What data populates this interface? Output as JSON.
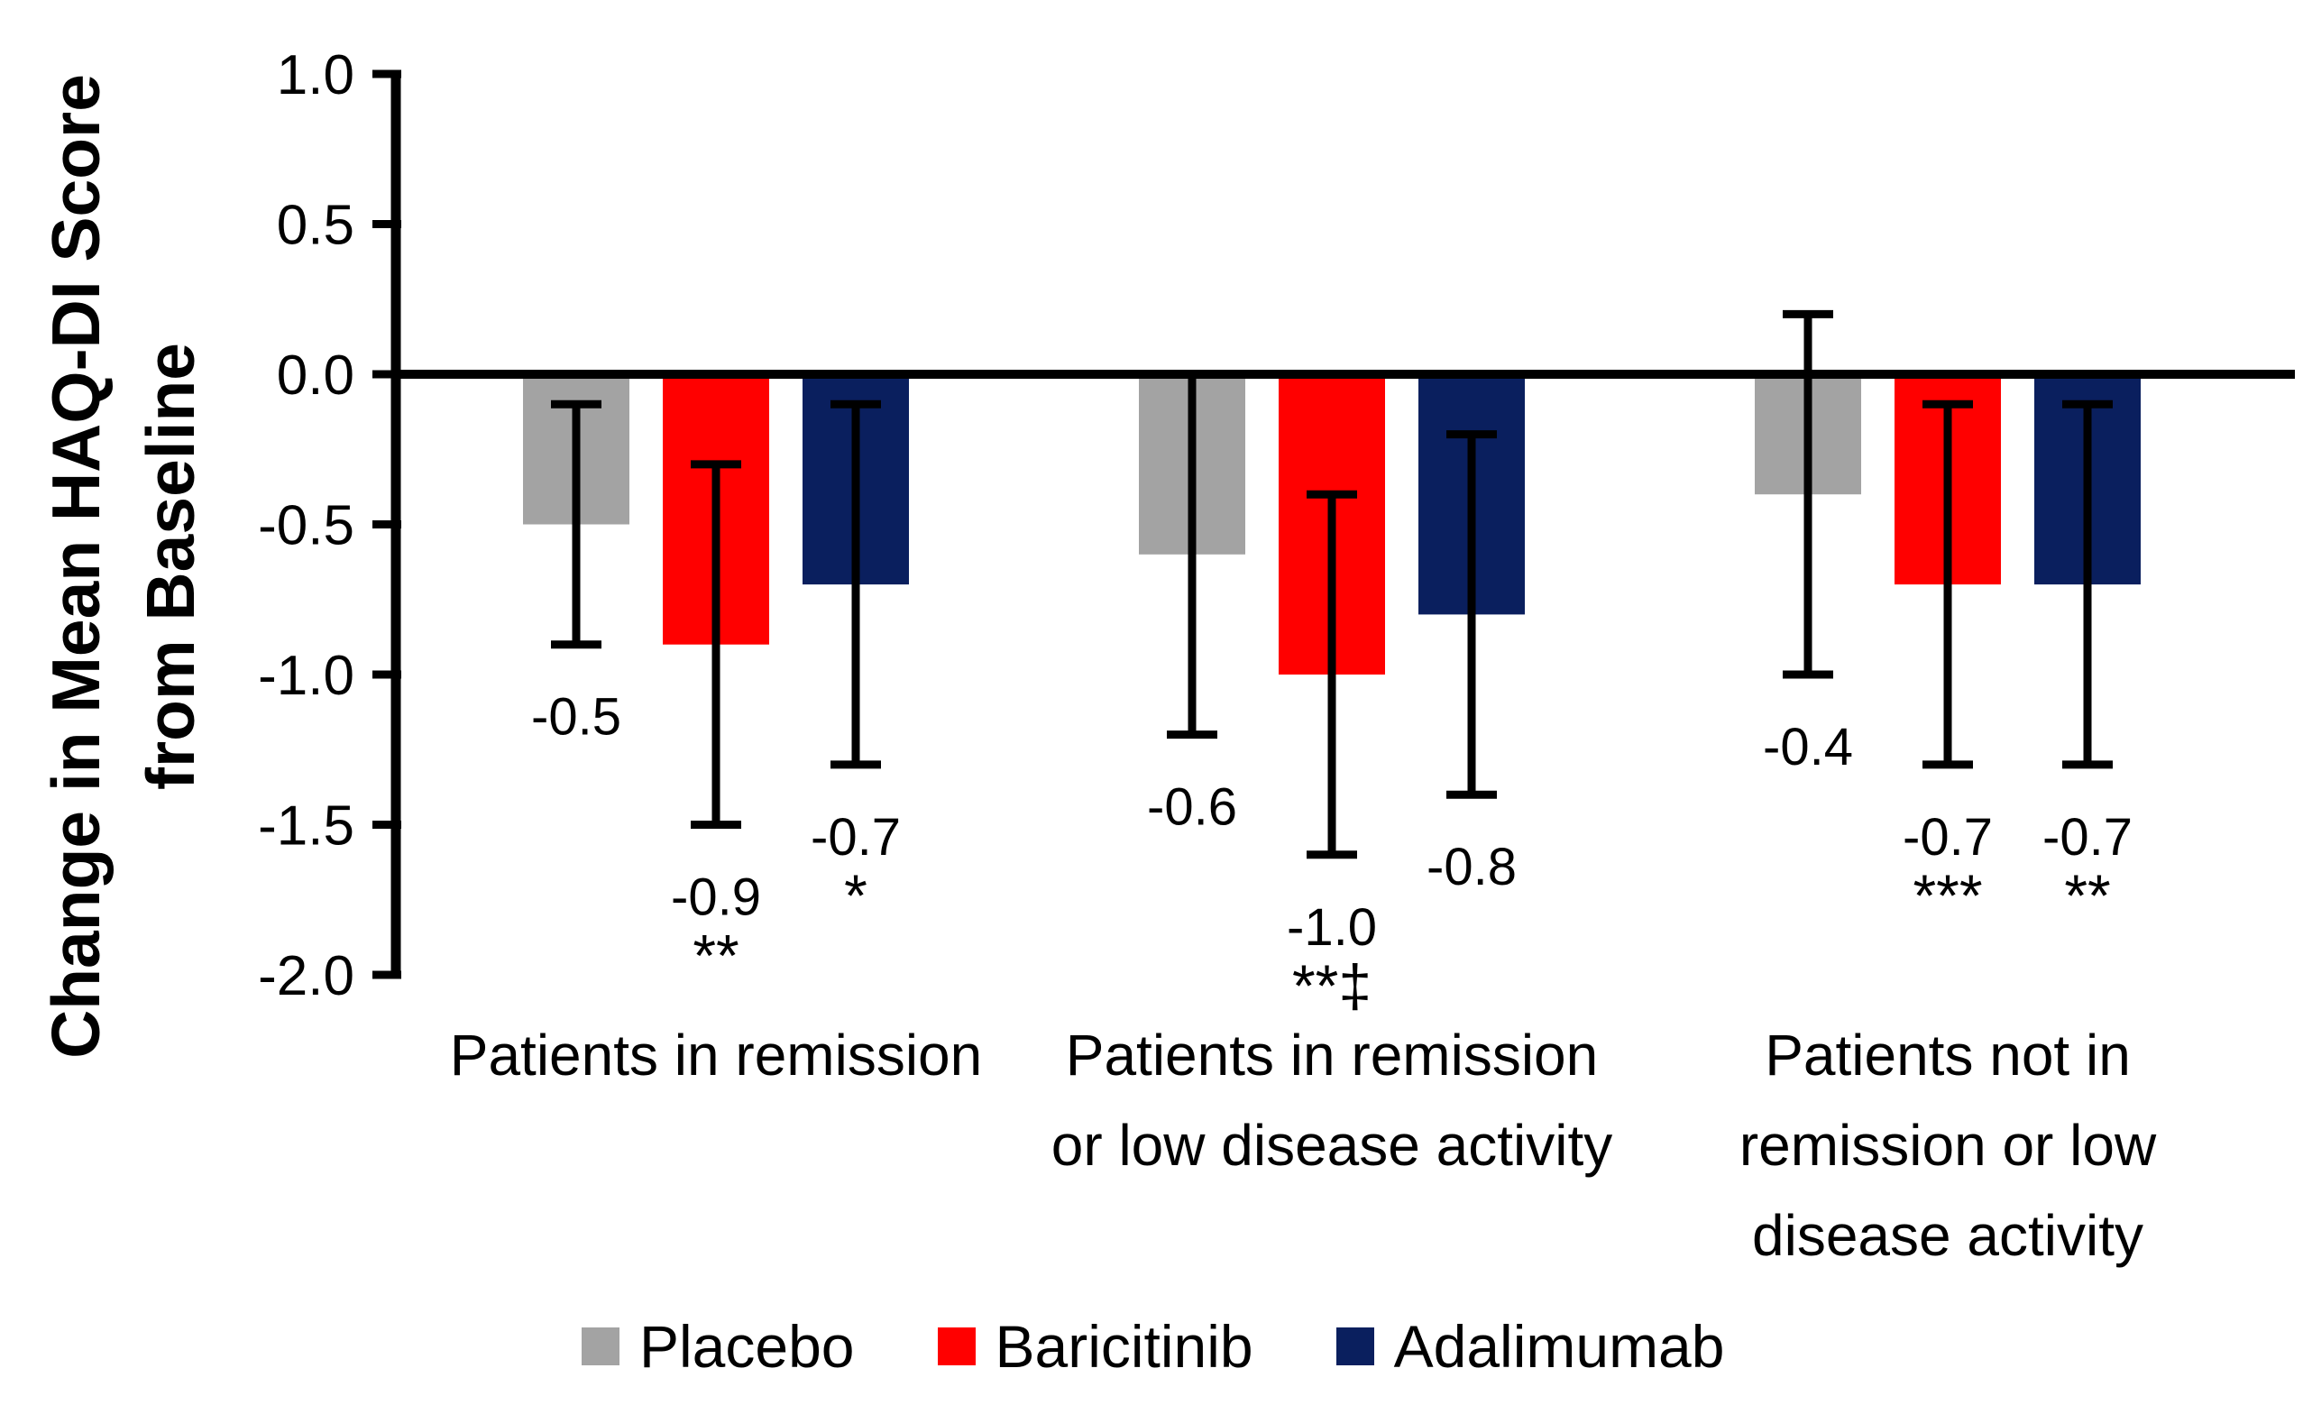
{
  "chart_data": {
    "type": "bar",
    "title": "",
    "ylabel": "Change in Mean HAQ-DI Score from Baseline",
    "ylabel_lines": [
      "Change in Mean HAQ-DI Score",
      "from Baseline"
    ],
    "xlabel": "",
    "ylim": [
      -2.0,
      1.0
    ],
    "ytick_step": 0.5,
    "yticks": [
      1.0,
      0.5,
      0.0,
      -0.5,
      -1.0,
      -1.5,
      -2.0
    ],
    "ytick_labels": [
      "1.0",
      "0.5",
      "0.0",
      "-0.5",
      "-1.0",
      "-1.5",
      "-2.0"
    ],
    "grid": false,
    "legend_position": "bottom",
    "background": "#FFFFFF",
    "axis_color": "#000000",
    "text_color": "#000000",
    "categories": [
      "Patients in remission",
      "Patients in remission or low disease activity",
      "Patients not in remission or low disease activity"
    ],
    "category_lines": [
      [
        "Patients in remission"
      ],
      [
        "Patients in remission",
        "or low disease activity"
      ],
      [
        "Patients not in",
        "remission or low",
        "disease activity"
      ]
    ],
    "series": [
      {
        "name": "Placebo",
        "color": "#A3A3A3",
        "values": [
          -0.5,
          -0.6,
          -0.4
        ],
        "error_high": [
          -0.1,
          0.0,
          0.2
        ],
        "error_low": [
          -0.9,
          -1.2,
          -1.0
        ],
        "data_labels": [
          "-0.5",
          "-0.6",
          "-0.4"
        ],
        "significance": [
          "",
          "",
          ""
        ]
      },
      {
        "name": "Baricitinib",
        "color": "#FF0000",
        "values": [
          -0.9,
          -1.0,
          -0.7
        ],
        "error_high": [
          -0.3,
          -0.4,
          -0.1
        ],
        "error_low": [
          -1.5,
          -1.6,
          -1.3
        ],
        "data_labels": [
          "-0.9",
          "-1.0",
          "-0.7"
        ],
        "significance": [
          "**",
          "**‡",
          "***"
        ]
      },
      {
        "name": "Adalimumab",
        "color": "#0A1F5E",
        "values": [
          -0.7,
          -0.8,
          -0.7
        ],
        "error_high": [
          -0.1,
          -0.2,
          -0.1
        ],
        "error_low": [
          -1.3,
          -1.4,
          -1.3
        ],
        "data_labels": [
          "-0.7",
          "-0.8",
          "-0.7"
        ],
        "significance": [
          "*",
          "",
          "**"
        ]
      }
    ]
  }
}
